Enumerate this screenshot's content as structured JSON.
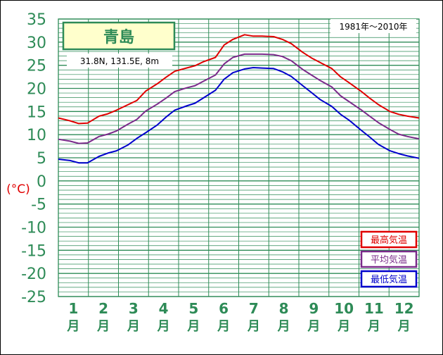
{
  "station": {
    "name": "青島",
    "location": "31.8N,  131.5E,  8m",
    "period": "1981年〜2010年"
  },
  "chart_data": {
    "type": "line",
    "ylabel": "(°C)",
    "ylim": [
      -25,
      35
    ],
    "y_major_step": 5,
    "y_minor_step": 1,
    "grid": true,
    "legend_position": "bottom-right",
    "x_categories": [
      "1",
      "2",
      "3",
      "4",
      "5",
      "6",
      "7",
      "8",
      "9",
      "10",
      "11",
      "12"
    ],
    "x_suffix": "月",
    "x_range": [
      0.3,
      12.7
    ],
    "series": [
      {
        "name": "最高気温",
        "color": "#e00000",
        "x": [
          0.3,
          0.7,
          1.0,
          1.3,
          1.7,
          2.0,
          2.3,
          2.7,
          3.0,
          3.3,
          3.7,
          4.0,
          4.3,
          4.7,
          5.0,
          5.3,
          5.7,
          6.0,
          6.3,
          6.7,
          7.0,
          7.3,
          7.7,
          8.0,
          8.3,
          8.7,
          9.0,
          9.3,
          9.7,
          10.0,
          10.3,
          10.7,
          11.0,
          11.3,
          11.7,
          12.0,
          12.3,
          12.7
        ],
        "values": [
          13.6,
          13.0,
          12.4,
          12.5,
          14.0,
          14.5,
          15.3,
          16.5,
          17.4,
          19.4,
          21.0,
          22.4,
          23.7,
          24.4,
          24.9,
          25.8,
          26.7,
          29.4,
          30.6,
          31.6,
          31.3,
          31.3,
          31.2,
          30.6,
          29.7,
          27.8,
          26.6,
          25.6,
          24.3,
          22.5,
          21.2,
          19.4,
          17.9,
          16.5,
          15.0,
          14.4,
          14.0,
          13.6
        ]
      },
      {
        "name": "平均気温",
        "color": "#7a2a8a",
        "x": [
          0.3,
          0.7,
          1.0,
          1.3,
          1.7,
          2.0,
          2.3,
          2.7,
          3.0,
          3.3,
          3.7,
          4.0,
          4.3,
          4.7,
          5.0,
          5.3,
          5.7,
          6.0,
          6.3,
          6.7,
          7.0,
          7.3,
          7.7,
          8.0,
          8.3,
          8.7,
          9.0,
          9.3,
          9.7,
          10.0,
          10.3,
          10.7,
          11.0,
          11.3,
          11.7,
          12.0,
          12.3,
          12.7
        ],
        "values": [
          9.0,
          8.6,
          8.1,
          8.2,
          9.6,
          10.1,
          10.8,
          12.3,
          13.3,
          15.1,
          16.6,
          17.9,
          19.3,
          20.1,
          20.6,
          21.6,
          22.9,
          25.3,
          26.7,
          27.4,
          27.4,
          27.4,
          27.3,
          26.9,
          26.0,
          24.1,
          22.9,
          21.7,
          20.3,
          18.4,
          17.1,
          15.4,
          14.0,
          12.6,
          11.1,
          10.1,
          9.6,
          9.1
        ]
      },
      {
        "name": "最低気温",
        "color": "#0000cc",
        "x": [
          0.3,
          0.7,
          1.0,
          1.3,
          1.7,
          2.0,
          2.3,
          2.7,
          3.0,
          3.3,
          3.7,
          4.0,
          4.3,
          4.7,
          5.0,
          5.3,
          5.7,
          6.0,
          6.3,
          6.7,
          7.0,
          7.3,
          7.7,
          8.0,
          8.3,
          8.7,
          9.0,
          9.3,
          9.7,
          10.0,
          10.3,
          10.7,
          11.0,
          11.3,
          11.7,
          12.0,
          12.3,
          12.7
        ],
        "values": [
          4.7,
          4.4,
          3.9,
          3.9,
          5.3,
          6.0,
          6.5,
          7.8,
          9.2,
          10.4,
          12.1,
          13.8,
          15.3,
          16.2,
          16.8,
          18.0,
          19.6,
          22.0,
          23.4,
          24.2,
          24.5,
          24.4,
          24.3,
          23.6,
          22.6,
          20.6,
          19.1,
          17.6,
          16.1,
          14.4,
          13.1,
          11.0,
          9.5,
          7.9,
          6.5,
          5.9,
          5.4,
          4.9
        ]
      }
    ]
  }
}
